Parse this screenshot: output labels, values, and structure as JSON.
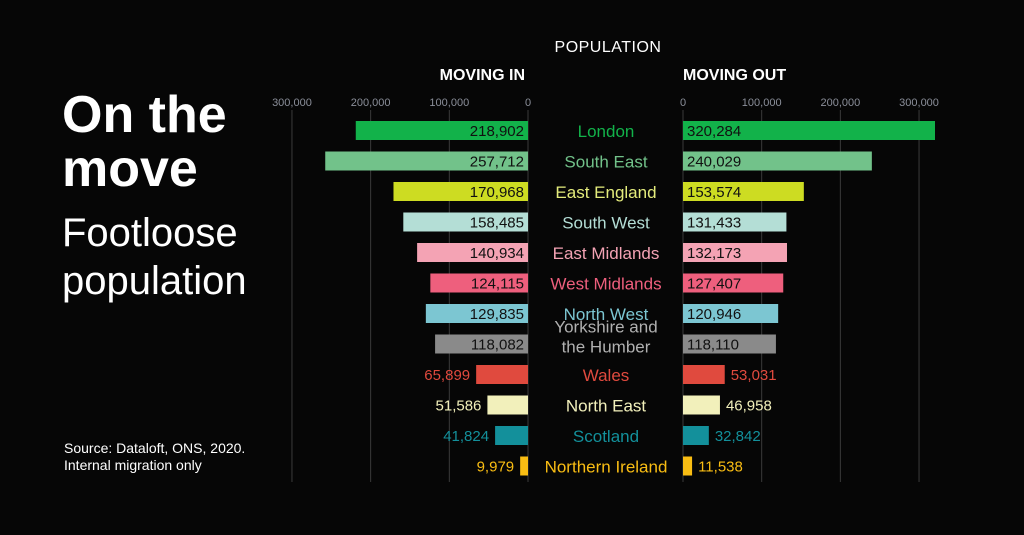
{
  "title_line1": "On the",
  "title_line2": "move",
  "subtitle_line1": "Footloose",
  "subtitle_line2": "population",
  "source_line1": "Source: Dataloft, ONS, 2020.",
  "source_line2": "Internal migration only",
  "chart_data": {
    "type": "bar",
    "title": "POPULATION",
    "left_label": "MOVING IN",
    "right_label": "MOVING OUT",
    "left_ticks": [
      "300,000",
      "200,000",
      "100,000",
      "0"
    ],
    "right_ticks": [
      "0",
      "100,000",
      "200,000",
      "300,000"
    ],
    "xlim": [
      0,
      320284
    ],
    "categories": [
      "London",
      "South East",
      "East England",
      "South West",
      "East Midlands",
      "West Midlands",
      "North West",
      "Yorkshire and the Humber",
      "Wales",
      "North East",
      "Scotland",
      "Northern Ireland"
    ],
    "series": [
      {
        "name": "MOVING IN",
        "values": [
          218902,
          257712,
          170968,
          158485,
          140934,
          124115,
          129835,
          118082,
          65899,
          51586,
          41824,
          9979
        ],
        "labels": [
          "218,902",
          "257,712",
          "170,968",
          "158,485",
          "140,934",
          "124,115",
          "129,835",
          "118,082",
          "65,899",
          "51,586",
          "41,824",
          "9,979"
        ]
      },
      {
        "name": "MOVING OUT",
        "values": [
          320284,
          240029,
          153574,
          131433,
          132173,
          127407,
          120946,
          118110,
          53031,
          46958,
          32842,
          11538
        ],
        "labels": [
          "320,284",
          "240,029",
          "153,574",
          "131,433",
          "132,173",
          "127,407",
          "120,946",
          "118,110",
          "53,031",
          "46,958",
          "32,842",
          "11,538"
        ]
      }
    ],
    "colors": [
      "#12b24a",
      "#72c28a",
      "#cddc22",
      "#b4ded6",
      "#f4a3b4",
      "#ee5f7d",
      "#7cc6d2",
      "#8a8a8a",
      "#e04a3e",
      "#f2f0bb",
      "#13909b",
      "#f9bd13"
    ],
    "category_label_colors": [
      "#12b24a",
      "#72c28a",
      "#e4ec7c",
      "#b4ded6",
      "#f4a3b4",
      "#ee5f7d",
      "#7cc6d2",
      "#b0b0b0",
      "#e04a3e",
      "#f2f0bb",
      "#13909b",
      "#f9bd13"
    ]
  }
}
